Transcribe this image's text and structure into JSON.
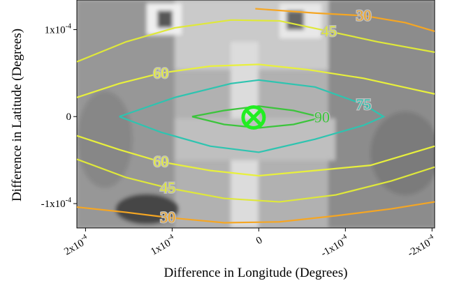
{
  "chart_data": {
    "type": "contour",
    "xlabel": "Difference in Longitude (Degrees)",
    "ylabel": "Difference in Latitude (Degrees)",
    "xlim": [
      0.00021,
      -0.000203
    ],
    "ylim": [
      -0.000128,
      0.000134
    ],
    "xticks": [
      {
        "value": 0.0002,
        "label": "2x10",
        "sup": "-4"
      },
      {
        "value": 0.0001,
        "label": "1x10",
        "sup": "-4"
      },
      0,
      {
        "value": -0.0001,
        "label": "-1x10",
        "sup": "-4"
      },
      {
        "value": -0.0002,
        "label": "-2x10",
        "sup": "-4"
      }
    ],
    "yticks": [
      {
        "value": 0.0001,
        "label": "1x10",
        "sup": "-4"
      },
      0,
      {
        "value": -0.0001,
        "label": "-1x10",
        "sup": "-4"
      }
    ],
    "contours": [
      {
        "level": 30,
        "color": "#f5a623",
        "x": [
          4e-06,
          -6.5e-05,
          -0.000121,
          -0.000169,
          -0.000203
        ],
        "y": [
          0.000124,
          0.000119,
          0.000116,
          0.000108,
          9.8e-05
        ]
      },
      {
        "level": 45,
        "color": "#dfe83a",
        "x": [
          0.00021,
          0.000153,
          9.7e-05,
          3.2e-05,
          -2.4e-05,
          -8.1e-05,
          -0.000137,
          -0.000203
        ],
        "y": [
          6.3e-05,
          8.6e-05,
          0.000102,
          0.000111,
          0.00011,
          9.8e-05,
          8.6e-05,
          7.4e-05
        ]
      },
      {
        "level": 60,
        "color": "#e8f03c",
        "x": [
          0.00021,
          0.000161,
          0.000113,
          5.6e-05,
          0,
          -5.6e-05,
          -0.000121,
          -0.000203
        ],
        "y": [
          2.2e-05,
          3.8e-05,
          5e-05,
          5.8e-05,
          6e-05,
          5.4e-05,
          4.4e-05,
          2.6e-05
        ]
      },
      {
        "level": 75,
        "color": "#2ec4b0",
        "x": [
          0.000161,
          9.7e-05,
          3.2e-05,
          0,
          -6.5e-05,
          -0.000121,
          -0.000144,
          -0.000121,
          -6.5e-05,
          0,
          5.6e-05,
          0.000113,
          0.000161
        ],
        "y": [
          0,
          2.2e-05,
          3.8e-05,
          4.2e-05,
          3.4e-05,
          1.4e-05,
          0,
          -1e-05,
          -2.6e-05,
          -4.1e-05,
          -3.4e-05,
          -1.8e-05,
          0
        ]
      },
      {
        "level": 90,
        "color": "#3cc43c",
        "x": [
          7.7e-05,
          4e-05,
          0,
          -4e-05,
          -7.3e-05,
          -4e-05,
          0,
          4e-05,
          7.7e-05
        ],
        "y": [
          0,
          7e-06,
          1.2e-05,
          7e-06,
          -1e-06,
          -9e-06,
          -1.3e-05,
          -9e-06,
          0
        ]
      },
      {
        "level": 60,
        "color": "#e8f03c",
        "x": [
          0.00021,
          0.000161,
          0.000113,
          5.6e-05,
          0,
          -6.5e-05,
          -0.000129,
          -0.000203
        ],
        "y": [
          -2.2e-05,
          -3.8e-05,
          -5.2e-05,
          -6.2e-05,
          -6.8e-05,
          -6.2e-05,
          -5.6e-05,
          -3.4e-05
        ]
      },
      {
        "level": 45,
        "color": "#dfe83a",
        "x": [
          0.00021,
          0.000153,
          0.000105,
          4e-05,
          -2.4e-05,
          -8.9e-05,
          -0.000153,
          -0.000203
        ],
        "y": [
          -4.9e-05,
          -7e-05,
          -8.2e-05,
          -9.4e-05,
          -9.8e-05,
          -9e-05,
          -7.4e-05,
          -5.8e-05
        ]
      },
      {
        "level": 30,
        "color": "#f5a623",
        "x": [
          0.00021,
          0.000153,
          0.000105,
          4e-05,
          -2.4e-05,
          -8.9e-05,
          -0.000153,
          -0.000203
        ],
        "y": [
          -0.000104,
          -0.00011,
          -0.000116,
          -0.000122,
          -0.000121,
          -0.000114,
          -0.000106,
          -9.8e-05
        ]
      }
    ],
    "marker": {
      "x": 6e-06,
      "y": -1e-06,
      "color": "#22ee22"
    }
  }
}
